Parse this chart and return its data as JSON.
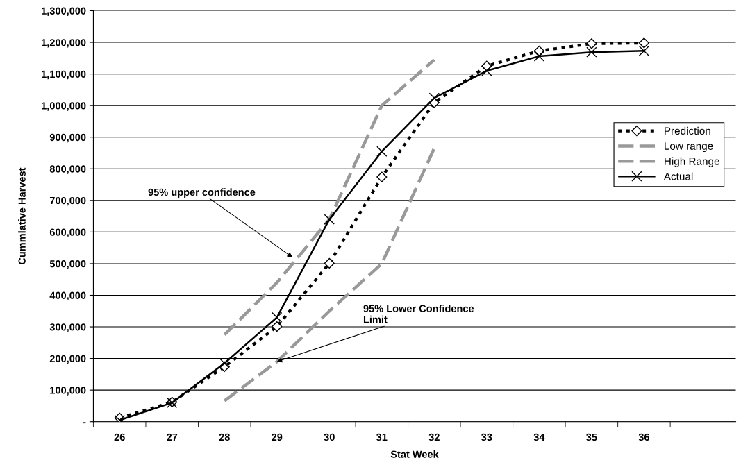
{
  "chart_data": {
    "type": "line",
    "xlabel": "Stat Week",
    "ylabel": "Cummlative Harvest",
    "categories": [
      "26",
      "27",
      "28",
      "29",
      "30",
      "31",
      "32",
      "33",
      "34",
      "35",
      "36",
      null
    ],
    "series": [
      {
        "name": "Prediction",
        "color": "#000000",
        "marker": "diamond",
        "line_style": "dotted",
        "values": [
          12000,
          62000,
          174000,
          301000,
          501000,
          774000,
          1009000,
          1125000,
          1173000,
          1196000,
          1198000,
          null
        ]
      },
      {
        "name": "Low range",
        "color": "#999999",
        "marker": "none",
        "line_style": "dashed",
        "values": [
          null,
          null,
          66000,
          190000,
          350000,
          500000,
          865000,
          null,
          null,
          null,
          null,
          null
        ]
      },
      {
        "name": "High Range",
        "color": "#999999",
        "marker": "none",
        "line_style": "dashed",
        "values": [
          null,
          null,
          275000,
          440000,
          640000,
          1000000,
          1145000,
          null,
          null,
          null,
          null,
          null
        ]
      },
      {
        "name": "Actual",
        "color": "#000000",
        "marker": "cross",
        "line_style": "solid",
        "values": [
          5000,
          60000,
          185000,
          330000,
          640000,
          855000,
          1024000,
          1110000,
          1156000,
          1169000,
          1173000,
          null
        ]
      }
    ],
    "ylim": [
      0,
      1300000
    ],
    "yticks": [
      {
        "value": 0,
        "label": "-"
      },
      {
        "value": 100000,
        "label": "100,000"
      },
      {
        "value": 200000,
        "label": "200,000"
      },
      {
        "value": 300000,
        "label": "300,000"
      },
      {
        "value": 400000,
        "label": "400,000"
      },
      {
        "value": 500000,
        "label": "500,000"
      },
      {
        "value": 600000,
        "label": "600,000"
      },
      {
        "value": 700000,
        "label": "700,000"
      },
      {
        "value": 800000,
        "label": "800,000"
      },
      {
        "value": 900000,
        "label": "900,000"
      },
      {
        "value": 1000000,
        "label": "1,000,000"
      },
      {
        "value": 1100000,
        "label": "1,100,000"
      },
      {
        "value": 1200000,
        "label": "1,200,000"
      },
      {
        "value": 1300000,
        "label": "1,300,000"
      }
    ],
    "annotations": [
      "95% upper confidence",
      {
        "text": "95% Lower Confidence\nLimit",
        "x": "29",
        "y": 190000
      }
    ],
    "grid": "y",
    "legend": "right"
  }
}
